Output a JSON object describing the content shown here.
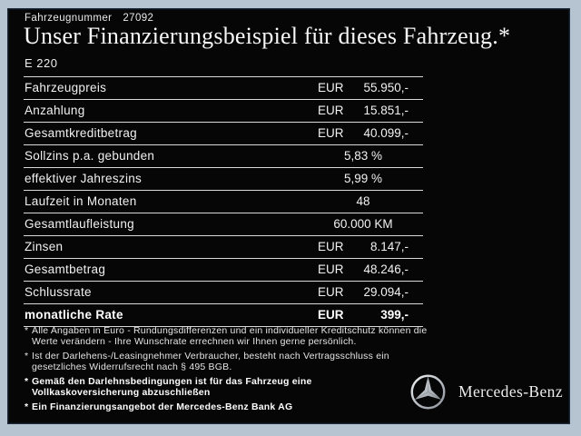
{
  "header": {
    "vehicle_number_label": "Fahrzeugnummer",
    "vehicle_number": "27092",
    "title": "Unser Finanzierungsbeispiel für dieses Fahrzeug.*",
    "model": "E 220"
  },
  "table": {
    "rows": [
      {
        "label": "Fahrzeugpreis",
        "currency": "EUR",
        "value": "55.950,-"
      },
      {
        "label": "Anzahlung",
        "currency": "EUR",
        "value": "15.851,-"
      },
      {
        "label": "Gesamtkreditbetrag",
        "currency": "EUR",
        "value": "40.099,-"
      },
      {
        "label": "Sollzins p.a. gebunden",
        "value": "5,83 %"
      },
      {
        "label": "effektiver Jahreszins",
        "value": "5,99 %"
      },
      {
        "label": "Laufzeit in Monaten",
        "value": "48"
      },
      {
        "label": "Gesamtlaufleistung",
        "value": "60.000 KM"
      },
      {
        "label": "Zinsen",
        "currency": "EUR",
        "value": "8.147,-"
      },
      {
        "label": "Gesamtbetrag",
        "currency": "EUR",
        "value": "48.246,-"
      },
      {
        "label": "Schlussrate",
        "currency": "EUR",
        "value": "29.094,-"
      },
      {
        "label": "monatliche Rate",
        "currency": "EUR",
        "value": "399,-",
        "bold": true
      }
    ]
  },
  "footnotes": [
    {
      "bold": false,
      "lines": [
        "Alle Angaben in Euro - Rundungsdifferenzen und ein individueller Kreditschutz können die",
        "Werte verändern - Ihre Wunschrate errechnen wir Ihnen gerne persönlich."
      ]
    },
    {
      "bold": false,
      "lines": [
        "Ist der Darlehens-/Leasingnehmer Verbraucher, besteht nach Vertragsschluss ein",
        "gesetzliches Widerrufsrecht nach § 495 BGB."
      ]
    },
    {
      "bold": true,
      "lines": [
        "Gemäß den Darlehnsbedingungen ist für das Fahrzeug eine",
        "Vollkaskoversicherung abzuschließen"
      ]
    },
    {
      "bold": true,
      "lines": [
        "Ein Finanzierungsangebot der Mercedes-Benz Bank AG"
      ]
    }
  ],
  "brand": {
    "logo_icon": "mercedes-star-icon",
    "name": "Mercedes-Benz"
  },
  "colors": {
    "frame": "#b6c3d0",
    "panel_background": "#060607",
    "table_line": "#d7d9db",
    "text": "#f1f1f1",
    "logo_silver": "#c9cdd1"
  }
}
